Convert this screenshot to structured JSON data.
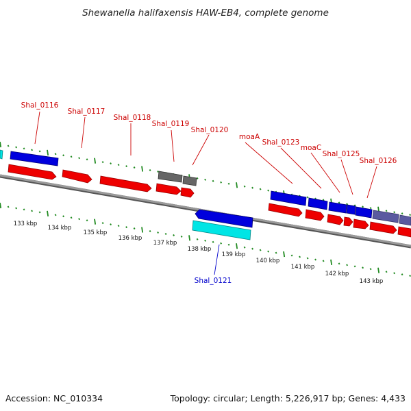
{
  "title": "Shewanella halifaxensis HAW-EB4, complete genome",
  "footer": {
    "accession": "Accession: NC_010334",
    "summary": "Topology: circular; Length: 5,226,917 bp; Genes: 4,433"
  },
  "colors": {
    "forward_cds": "#ee0000",
    "reverse_cds": "#0000dd",
    "rna": "#00e5e5",
    "other": "#666666",
    "lavender": "#5a5aa0",
    "backbone": "#888888",
    "gc_ticks": "#228b22",
    "label_forward": "#cc0000",
    "label_reverse": "#0000cc"
  },
  "scale_labels": [
    "133 kbp",
    "134 kbp",
    "135 kbp",
    "136 kbp",
    "137 kbp",
    "138 kbp",
    "139 kbp",
    "140 kbp",
    "141 kbp",
    "142 kbp",
    "143 kbp"
  ],
  "gene_labels": [
    {
      "text": "Shal_0116",
      "strand": "forward"
    },
    {
      "text": "Shal_0117",
      "strand": "forward"
    },
    {
      "text": "Shal_0118",
      "strand": "forward"
    },
    {
      "text": "Shal_0119",
      "strand": "forward"
    },
    {
      "text": "Shal_0120",
      "strand": "forward"
    },
    {
      "text": "moaA",
      "strand": "forward"
    },
    {
      "text": "Shal_0123",
      "strand": "forward"
    },
    {
      "text": "moaC",
      "strand": "forward"
    },
    {
      "text": "Shal_0125",
      "strand": "forward"
    },
    {
      "text": "Shal_0126",
      "strand": "forward"
    },
    {
      "text": "Shal_0121",
      "strand": "reverse"
    }
  ]
}
